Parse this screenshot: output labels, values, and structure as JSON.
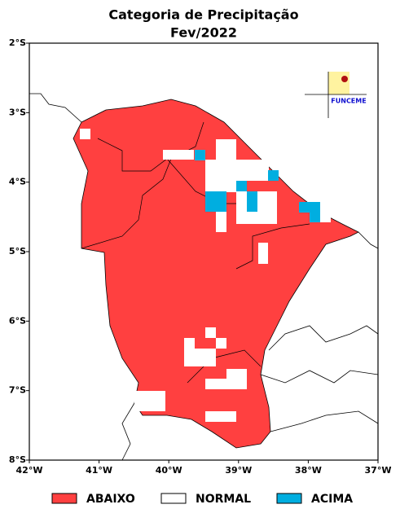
{
  "map": {
    "title": "Categoria de Precipitação",
    "subtitle": "Fev/2022",
    "xlim": [
      -42,
      -37
    ],
    "ylim": [
      -8,
      -2
    ],
    "xticks": [
      {
        "value": -42,
        "label": "42°W"
      },
      {
        "value": -41,
        "label": "41°W"
      },
      {
        "value": -40,
        "label": "40°W"
      },
      {
        "value": -39,
        "label": "39°W"
      },
      {
        "value": -38,
        "label": "38°W"
      },
      {
        "value": -37,
        "label": "37°W"
      }
    ],
    "yticks": [
      {
        "value": -2,
        "label": "2°S"
      },
      {
        "value": -3,
        "label": "3°S"
      },
      {
        "value": -4,
        "label": "4°S"
      },
      {
        "value": -5,
        "label": "5°S"
      },
      {
        "value": -6,
        "label": "6°S"
      },
      {
        "value": -7,
        "label": "7°S"
      },
      {
        "value": -8,
        "label": "8°S"
      }
    ],
    "logo": "FUNCEME",
    "legend": [
      {
        "name": "ABAIXO",
        "color": "#ff4040"
      },
      {
        "name": "NORMAL",
        "color": "#ffffff"
      },
      {
        "name": "ACIMA",
        "color": "#00aee0"
      }
    ]
  }
}
